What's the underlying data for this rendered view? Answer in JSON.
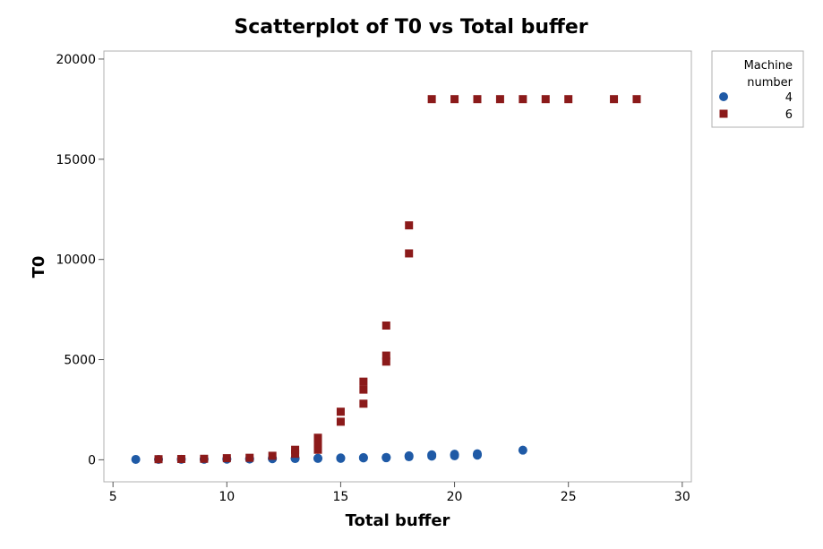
{
  "chart_data": {
    "type": "scatter",
    "title": "Scatterplot of T0 vs Total buffer",
    "xlabel": "Total buffer",
    "ylabel": "T0",
    "xlim": [
      4.6,
      30.4
    ],
    "ylim": [
      -1100,
      20400
    ],
    "xticks": [
      "5",
      "10",
      "15",
      "20",
      "25",
      "30"
    ],
    "yticks": [
      "0",
      "5000",
      "10000",
      "15000",
      "20000"
    ],
    "grid": false,
    "legend": {
      "title": "Machine number",
      "position": "right"
    },
    "series": [
      {
        "name": "4",
        "marker": "circle",
        "color": "#1f5aa6",
        "points": [
          [
            6,
            20
          ],
          [
            7,
            20
          ],
          [
            8,
            25
          ],
          [
            9,
            25
          ],
          [
            10,
            30
          ],
          [
            10,
            45
          ],
          [
            11,
            35
          ],
          [
            11,
            50
          ],
          [
            12,
            50
          ],
          [
            12,
            70
          ],
          [
            13,
            60
          ],
          [
            13,
            75
          ],
          [
            14,
            65
          ],
          [
            14,
            80
          ],
          [
            15,
            70
          ],
          [
            15,
            95
          ],
          [
            16,
            90
          ],
          [
            16,
            110
          ],
          [
            17,
            100
          ],
          [
            17,
            120
          ],
          [
            18,
            150
          ],
          [
            18,
            200
          ],
          [
            19,
            180
          ],
          [
            19,
            250
          ],
          [
            20,
            200
          ],
          [
            20,
            280
          ],
          [
            21,
            230
          ],
          [
            21,
            300
          ],
          [
            23,
            480
          ]
        ]
      },
      {
        "name": "6",
        "marker": "square",
        "color": "#8b1a1a",
        "points": [
          [
            7,
            30
          ],
          [
            8,
            40
          ],
          [
            9,
            50
          ],
          [
            10,
            80
          ],
          [
            11,
            100
          ],
          [
            12,
            200
          ],
          [
            13,
            300
          ],
          [
            13,
            500
          ],
          [
            14,
            500
          ],
          [
            14,
            800
          ],
          [
            14,
            1100
          ],
          [
            15,
            1900
          ],
          [
            15,
            2400
          ],
          [
            16,
            2800
          ],
          [
            16,
            3500
          ],
          [
            16,
            3900
          ],
          [
            17,
            4900
          ],
          [
            17,
            5200
          ],
          [
            17,
            6700
          ],
          [
            18,
            10300
          ],
          [
            18,
            11700
          ],
          [
            19,
            18000
          ],
          [
            20,
            18000
          ],
          [
            21,
            18000
          ],
          [
            22,
            18000
          ],
          [
            23,
            18000
          ],
          [
            24,
            18000
          ],
          [
            25,
            18000
          ],
          [
            27,
            18000
          ],
          [
            28,
            18000
          ]
        ]
      }
    ]
  }
}
